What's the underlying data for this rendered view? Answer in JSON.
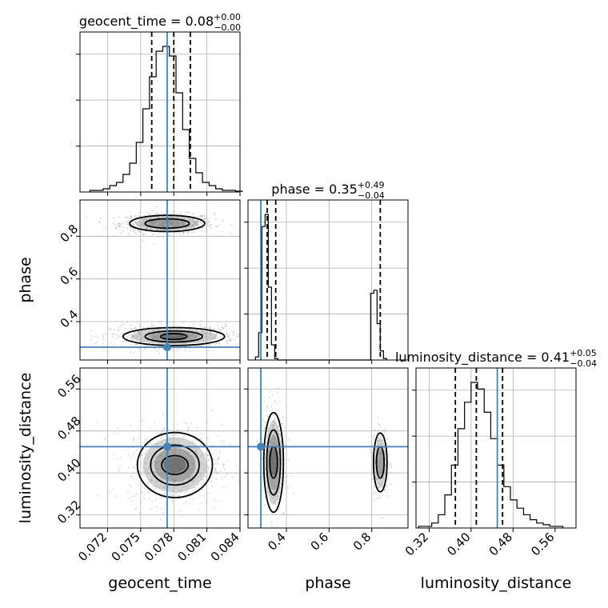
{
  "chart_data": {
    "type": "corner",
    "colors": {
      "truth": "#4682b4",
      "hist": "#000000",
      "quantile": "#000000",
      "points": "#7f7f7f"
    },
    "params": [
      {
        "name": "geocent_time",
        "label": "geocent_time",
        "range": [
          0.0695,
          0.084
        ],
        "ticks": [
          "0.072",
          "0.075",
          "0.078",
          "0.081",
          "0.084"
        ],
        "tick_values": [
          0.072,
          0.075,
          0.078,
          0.081,
          0.084
        ],
        "truth": 0.0774,
        "title_main": "geocent_time = 0.08",
        "title_sup": "+0.00",
        "title_sub": "−0.00",
        "quantiles": [
          0.076,
          0.078,
          0.0795
        ]
      },
      {
        "name": "phase",
        "label": "phase",
        "range": [
          0.22,
          0.97
        ],
        "ticks": [
          "0.4",
          "0.6",
          "0.8"
        ],
        "tick_values": [
          0.4,
          0.6,
          0.8
        ],
        "truth": 0.28,
        "title_main": "phase = 0.35",
        "title_sup": "+0.49",
        "title_sub": "−0.04",
        "quantiles": [
          0.31,
          0.35,
          0.84
        ]
      },
      {
        "name": "luminosity_distance",
        "label": "luminosity_distance",
        "range": [
          0.295,
          0.6
        ],
        "ticks": [
          "0.32",
          "0.40",
          "0.48",
          "0.56"
        ],
        "tick_values": [
          0.32,
          0.4,
          0.48,
          0.56
        ],
        "truth": 0.45,
        "title_main": "luminosity_distance = 0.41",
        "title_sup": "+0.05",
        "title_sub": "−0.04",
        "quantiles": [
          0.37,
          0.41,
          0.46
        ]
      }
    ],
    "histograms": [
      {
        "param": "geocent_time",
        "bin_start": 0.0704,
        "bin_width": 0.0006,
        "counts": [
          1,
          1,
          2,
          4,
          6,
          11,
          18,
          31,
          52,
          72,
          88,
          91,
          85,
          62,
          39,
          21,
          12,
          6,
          4,
          2,
          1,
          1,
          0.5
        ]
      },
      {
        "param": "phase",
        "bin_start": 0.255,
        "bin_width": 0.015,
        "counts": [
          2,
          18,
          88,
          96,
          48,
          10,
          1,
          0,
          0,
          0,
          0,
          0,
          0,
          0,
          0,
          0,
          0,
          0,
          0,
          0,
          0,
          0,
          0,
          0,
          0,
          0,
          0,
          0,
          0,
          0,
          0,
          0,
          0,
          0,
          0,
          0,
          44,
          46,
          24,
          6,
          1
        ]
      },
      {
        "param": "luminosity_distance",
        "bin_start": 0.3,
        "bin_width": 0.0125,
        "counts": [
          1,
          1,
          3,
          8,
          20,
          38,
          60,
          76,
          88,
          84,
          70,
          54,
          38,
          25,
          17,
          12,
          8,
          5,
          3,
          2,
          1,
          1
        ]
      }
    ],
    "contours_2d": [
      {
        "x": "geocent_time",
        "y": "phase",
        "modes": [
          {
            "center": [
              0.0774,
              0.86
            ],
            "levels_half_widths": [
              [
                0.002,
                0.022
              ],
              [
                0.0034,
                0.038
              ]
            ]
          },
          {
            "center": [
              0.078,
              0.33
            ],
            "levels_half_widths": [
              [
                0.0012,
                0.014
              ],
              [
                0.0026,
                0.026
              ],
              [
                0.0046,
                0.042
              ]
            ]
          }
        ]
      },
      {
        "x": "geocent_time",
        "y": "luminosity_distance",
        "modes": [
          {
            "center": [
              0.0781,
              0.415
            ],
            "levels_half_widths": [
              [
                0.0012,
                0.018
              ],
              [
                0.0022,
                0.038
              ],
              [
                0.0034,
                0.062
              ]
            ]
          }
        ]
      },
      {
        "x": "phase",
        "y": "luminosity_distance",
        "modes": [
          {
            "center": [
              0.34,
              0.42
            ],
            "levels_half_widths": [
              [
                0.018,
                0.03
              ],
              [
                0.032,
                0.062
              ],
              [
                0.046,
                0.095
              ]
            ]
          },
          {
            "center": [
              0.84,
              0.42
            ],
            "levels_half_widths": [
              [
                0.018,
                0.03
              ],
              [
                0.032,
                0.056
              ]
            ]
          }
        ]
      }
    ],
    "grid": true,
    "scatter_points": true
  }
}
